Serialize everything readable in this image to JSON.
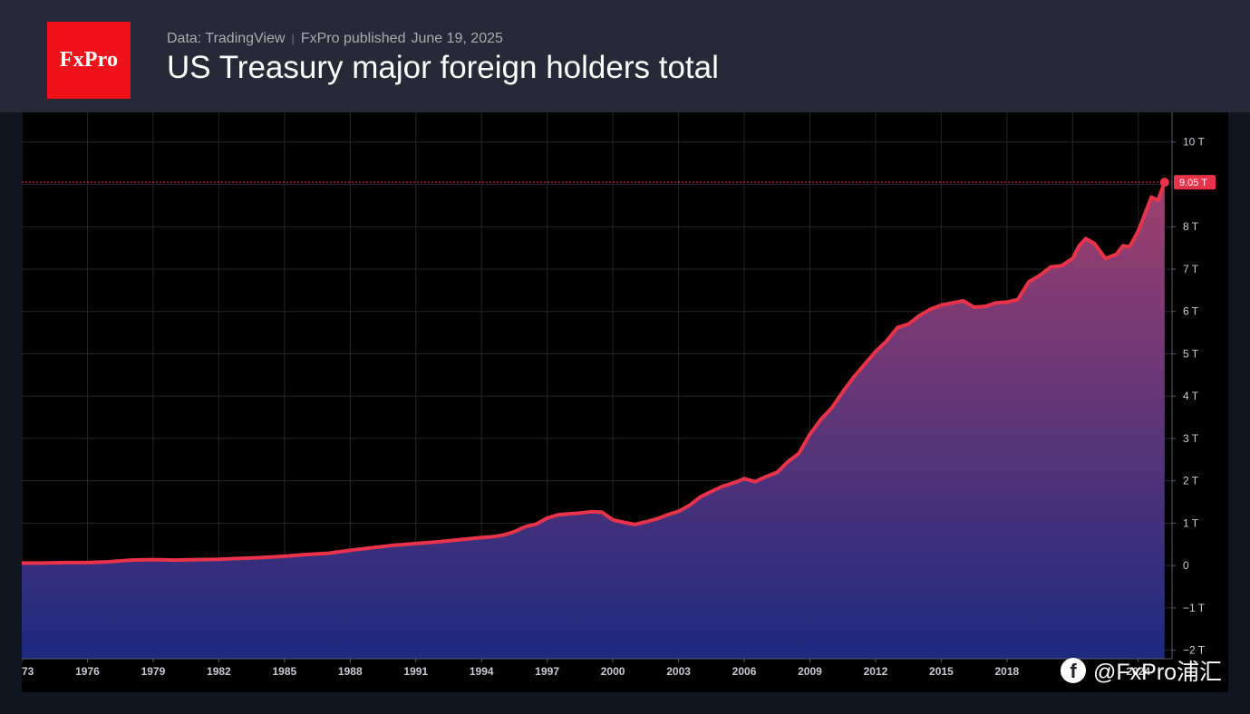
{
  "header": {
    "logo_text": "FxPro",
    "source": "Data: TradingView",
    "publisher": "FxPro published",
    "date": "June 19, 2025",
    "title": "US Treasury major foreign holders total"
  },
  "watermark": {
    "icon": "facebook-icon",
    "text": "@FxPro浦汇"
  },
  "colors": {
    "header_bg": "#272a36",
    "logo_bg": "#f0121a",
    "line": "#e8334a",
    "fill_top": "#a0406e",
    "fill_bottom": "#1c2a80",
    "label_bg": "#e8334a"
  },
  "chart_data": {
    "type": "area",
    "title": "US Treasury major foreign holders total",
    "unit": "T",
    "xlim": [
      1973,
      2025.5
    ],
    "ylim": [
      -2.2,
      10.7
    ],
    "grid": true,
    "x_ticks": [
      "1973",
      "1976",
      "1979",
      "1982",
      "1985",
      "1988",
      "1991",
      "1994",
      "1997",
      "2000",
      "2003",
      "2006",
      "2009",
      "2012",
      "2015",
      "2018",
      "2021",
      "2024"
    ],
    "x_tick_values": [
      1973,
      1976,
      1979,
      1982,
      1985,
      1988,
      1991,
      1994,
      1997,
      2000,
      2003,
      2006,
      2009,
      2012,
      2015,
      2018,
      2021,
      2024
    ],
    "y_ticks": [
      "−2 T",
      "−1 T",
      "0",
      "1 T",
      "2 T",
      "3 T",
      "4 T",
      "5 T",
      "6 T",
      "7 T",
      "8 T",
      "10 T"
    ],
    "y_tick_values": [
      -2,
      -1,
      0,
      1,
      2,
      3,
      4,
      5,
      6,
      7,
      8,
      10
    ],
    "last_value_label": "9.05 T",
    "last_value": 9.05,
    "series": [
      {
        "x": [
          1973,
          1974,
          1975,
          1976,
          1977,
          1978,
          1979,
          1980,
          1981,
          1982,
          1983,
          1984,
          1985,
          1986,
          1987,
          1988,
          1989,
          1990,
          1991,
          1992,
          1993,
          1994,
          1994.5,
          1995,
          1995.5,
          1996,
          1996.5,
          1997,
          1997.5,
          1998,
          1998.5,
          1999,
          1999.5,
          2000,
          2000.5,
          2001,
          2001.5,
          2002,
          2002.5,
          2003,
          2003.5,
          2004,
          2004.5,
          2005,
          2005.5,
          2006,
          2006.5,
          2007,
          2007.5,
          2008,
          2008.5,
          2009,
          2009.5,
          2010,
          2010.5,
          2011,
          2011.5,
          2012,
          2012.5,
          2013,
          2013.5,
          2014,
          2014.5,
          2015,
          2015.5,
          2016,
          2016.5,
          2017,
          2017.5,
          2018,
          2018.5,
          2019,
          2019.5,
          2020,
          2020.5,
          2021,
          2021.3,
          2021.6,
          2022,
          2022.5,
          2023,
          2023.3,
          2023.6,
          2024,
          2024.3,
          2024.6,
          2024.9,
          2025.2
        ],
        "y": [
          0.06,
          0.06,
          0.07,
          0.07,
          0.09,
          0.13,
          0.14,
          0.13,
          0.14,
          0.15,
          0.17,
          0.19,
          0.22,
          0.26,
          0.29,
          0.36,
          0.42,
          0.48,
          0.52,
          0.56,
          0.61,
          0.66,
          0.68,
          0.72,
          0.8,
          0.92,
          0.98,
          1.12,
          1.2,
          1.22,
          1.24,
          1.27,
          1.26,
          1.08,
          1.02,
          0.97,
          1.03,
          1.1,
          1.2,
          1.28,
          1.42,
          1.62,
          1.75,
          1.87,
          1.95,
          2.05,
          1.98,
          2.1,
          2.2,
          2.45,
          2.65,
          3.1,
          3.45,
          3.72,
          4.1,
          4.45,
          4.75,
          5.05,
          5.3,
          5.62,
          5.7,
          5.9,
          6.05,
          6.15,
          6.2,
          6.25,
          6.1,
          6.12,
          6.2,
          6.22,
          6.28,
          6.7,
          6.85,
          7.05,
          7.08,
          7.25,
          7.55,
          7.72,
          7.6,
          7.25,
          7.35,
          7.55,
          7.52,
          7.9,
          8.3,
          8.7,
          8.62,
          9.05
        ],
        "values_note": ""
      }
    ]
  }
}
